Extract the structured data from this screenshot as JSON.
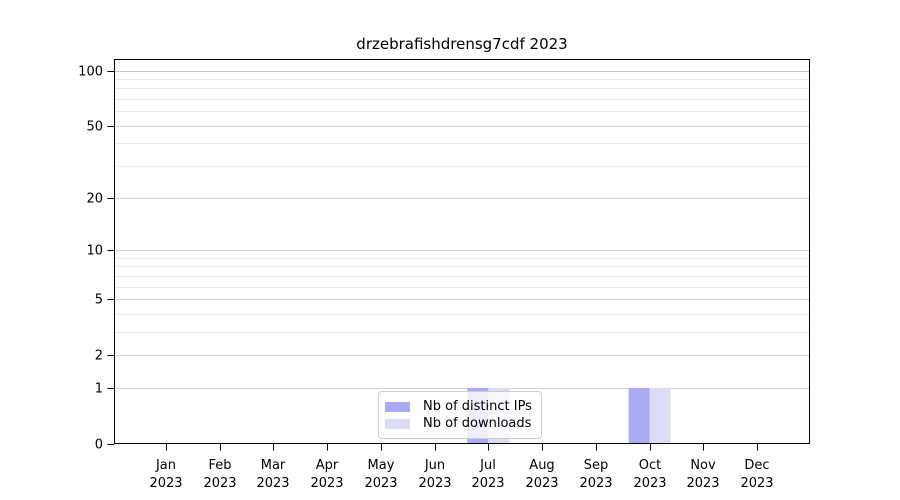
{
  "figure": {
    "title": "drzebrafishdrensg7cdf 2023"
  },
  "legend": {
    "items": [
      {
        "label": "Nb of distinct IPs",
        "color": "#a9a9f4"
      },
      {
        "label": "Nb of downloads",
        "color": "#dcdcf7"
      }
    ]
  },
  "chart_data": {
    "type": "bar",
    "title": "drzebrafishdrensg7cdf 2023",
    "categories": [
      "Jan",
      "Feb",
      "Mar",
      "Apr",
      "May",
      "Jun",
      "Jul",
      "Aug",
      "Sep",
      "Oct",
      "Nov",
      "Dec"
    ],
    "category_year": "2023",
    "series": [
      {
        "name": "Nb of distinct IPs",
        "color": "#a9a9f4",
        "values": [
          0,
          0,
          0,
          0,
          0,
          0,
          1,
          0,
          0,
          1,
          0,
          0
        ]
      },
      {
        "name": "Nb of downloads",
        "color": "#dcdcf7",
        "values": [
          0,
          0,
          0,
          0,
          0,
          0,
          1,
          0,
          0,
          1,
          0,
          0
        ]
      }
    ],
    "y_scale": "log1p",
    "y_tick_labels": [
      0,
      1,
      2,
      5,
      10,
      20,
      50,
      100
    ],
    "y_minor_grid": [
      3,
      4,
      6,
      7,
      8,
      9,
      30,
      40,
      60,
      70,
      80,
      90
    ],
    "ylim": [
      0,
      115
    ],
    "xlabel": "",
    "ylabel": "",
    "grid": "horizontal",
    "legend_position": "lower center",
    "colors": {
      "axis": "#000000",
      "tick_text": "#000000",
      "grid_major": "#d2d2d2",
      "grid_minor": "#ececec",
      "grid_top": "#c6c6c6"
    }
  }
}
